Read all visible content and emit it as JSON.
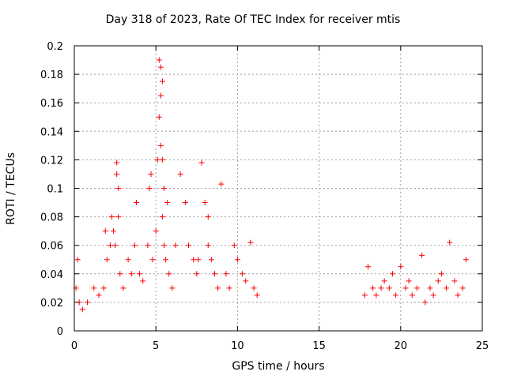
{
  "chart_data": {
    "type": "scatter",
    "title": "Day 318 of 2023, Rate Of TEC Index for receiver mtis",
    "xlabel": "GPS time / hours",
    "ylabel": "ROTI / TECUs",
    "xlim": [
      0,
      25
    ],
    "ylim": [
      0,
      0.2
    ],
    "xticks": [
      "0",
      "5",
      "10",
      "15",
      "20",
      "25"
    ],
    "yticks": [
      "0",
      "0.02",
      "0.04",
      "0.06",
      "0.08",
      "0.1",
      "0.12",
      "0.14",
      "0.16",
      "0.18",
      "0.2"
    ],
    "grid": true,
    "marker": "+",
    "color": "#ff0000",
    "series": [
      {
        "x": [
          0.1,
          0.2,
          0.3,
          0.5,
          0.8,
          1.2,
          1.5,
          1.8,
          1.9,
          2.0,
          2.2,
          2.3,
          2.4,
          2.5,
          2.6,
          2.6,
          2.7,
          2.7,
          2.8,
          3.0,
          3.3,
          3.5,
          3.7,
          3.8,
          4.0,
          4.2,
          4.5,
          4.6,
          4.7,
          4.8,
          5.0,
          5.1,
          5.2,
          5.2,
          5.3,
          5.3,
          5.3,
          5.4,
          5.4,
          5.4,
          5.5,
          5.5,
          5.6,
          5.7,
          5.8,
          6.0,
          6.2,
          6.5,
          6.8,
          7.0,
          7.3,
          7.5,
          7.6,
          7.8,
          8.0,
          8.2,
          8.2,
          8.4,
          8.6,
          8.8,
          9.0,
          9.3,
          9.5,
          9.8,
          10.0,
          10.3,
          10.5,
          10.8,
          11.0,
          11.2,
          17.8,
          18.0,
          18.3,
          18.5,
          18.8,
          19.0,
          19.3,
          19.5,
          19.7,
          20.0,
          20.3,
          20.5,
          20.7,
          21.0,
          21.3,
          21.5,
          21.8,
          22.0,
          22.3,
          22.5,
          22.8,
          23.0,
          23.3,
          23.5,
          23.8,
          24.0
        ],
        "y": [
          0.03,
          0.05,
          0.02,
          0.015,
          0.02,
          0.03,
          0.025,
          0.03,
          0.07,
          0.05,
          0.06,
          0.08,
          0.07,
          0.06,
          0.118,
          0.11,
          0.1,
          0.08,
          0.04,
          0.03,
          0.05,
          0.04,
          0.06,
          0.09,
          0.04,
          0.035,
          0.06,
          0.1,
          0.11,
          0.05,
          0.07,
          0.12,
          0.15,
          0.19,
          0.185,
          0.165,
          0.13,
          0.175,
          0.12,
          0.08,
          0.1,
          0.06,
          0.05,
          0.09,
          0.04,
          0.03,
          0.06,
          0.11,
          0.09,
          0.06,
          0.05,
          0.04,
          0.05,
          0.118,
          0.09,
          0.08,
          0.06,
          0.05,
          0.04,
          0.03,
          0.103,
          0.04,
          0.03,
          0.06,
          0.05,
          0.04,
          0.035,
          0.062,
          0.03,
          0.025,
          0.025,
          0.045,
          0.03,
          0.025,
          0.03,
          0.035,
          0.03,
          0.04,
          0.025,
          0.045,
          0.03,
          0.035,
          0.025,
          0.03,
          0.053,
          0.02,
          0.03,
          0.025,
          0.035,
          0.04,
          0.03,
          0.062,
          0.035,
          0.025,
          0.03,
          0.05
        ]
      }
    ]
  }
}
